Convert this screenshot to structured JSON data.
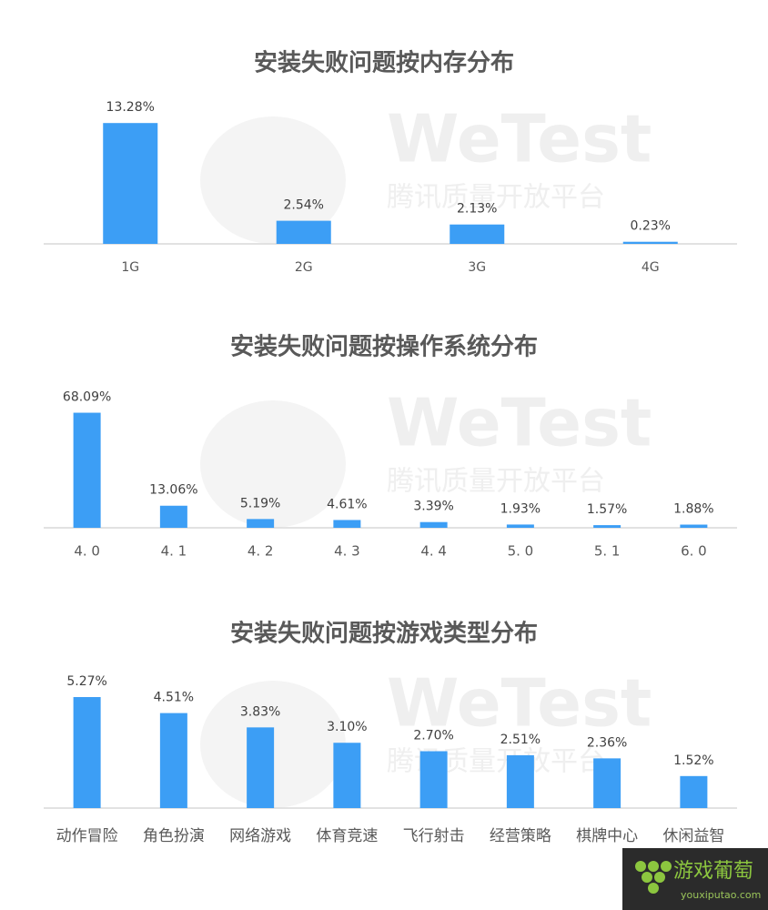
{
  "chart_data": [
    {
      "type": "bar",
      "title": "安装失败问题按内存分布",
      "categories": [
        "1G",
        "2G",
        "3G",
        "4G"
      ],
      "values": [
        13.28,
        2.54,
        2.13,
        0.23
      ],
      "value_labels": [
        "13.28%",
        "2.54%",
        "2.13%",
        "0.23%"
      ],
      "color": "#3c9ef5",
      "ylim": [
        0,
        13.3
      ]
    },
    {
      "type": "bar",
      "title": "安装失败问题按操作系统分布",
      "categories": [
        "4. 0",
        "4. 1",
        "4. 2",
        "4. 3",
        "4. 4",
        "5. 0",
        "5. 1",
        "6. 0"
      ],
      "values": [
        68.09,
        13.06,
        5.19,
        4.61,
        3.39,
        1.93,
        1.57,
        1.88
      ],
      "value_labels": [
        "68.09%",
        "13.06%",
        "5.19%",
        "4.61%",
        "3.39%",
        "1.93%",
        "1.57%",
        "1.88%"
      ],
      "color": "#3c9ef5",
      "ylim": [
        0,
        70
      ]
    },
    {
      "type": "bar",
      "title": "安装失败问题按游戏类型分布",
      "categories": [
        "动作冒险",
        "角色扮演",
        "网络游戏",
        "体育竞速",
        "飞行射击",
        "经营策略",
        "棋牌中心",
        "休闲益智"
      ],
      "values": [
        5.27,
        4.51,
        3.83,
        3.1,
        2.7,
        2.51,
        2.36,
        1.52
      ],
      "value_labels": [
        "5.27%",
        "4.51%",
        "3.83%",
        "3.10%",
        "2.70%",
        "2.51%",
        "2.36%",
        "1.52%"
      ],
      "color": "#3c9ef5",
      "ylim": [
        0,
        5.4
      ]
    }
  ],
  "watermark": {
    "title": "WeTest",
    "subtitle": "腾讯质量开放平台"
  },
  "logo": {
    "name": "游戏葡萄",
    "url": "youxiputao.com"
  }
}
